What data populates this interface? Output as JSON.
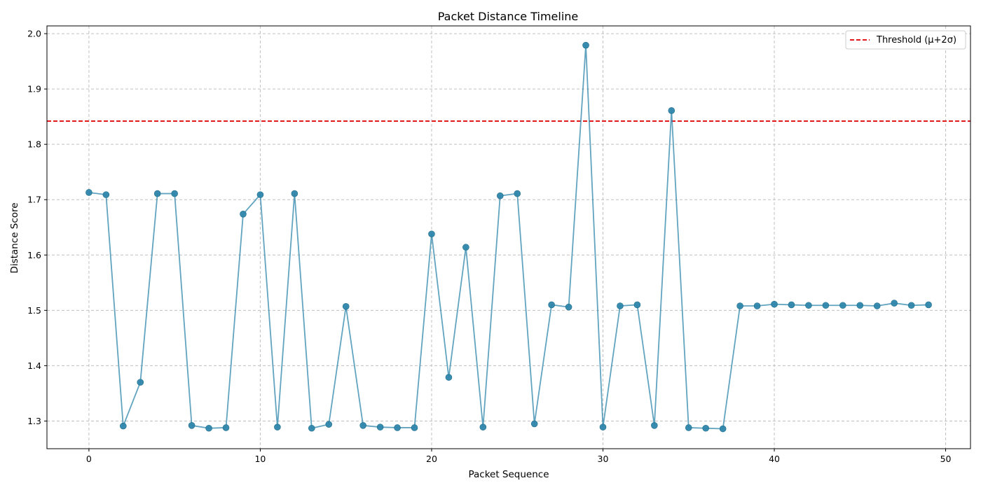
{
  "chart_data": {
    "type": "line",
    "title": "Packet Distance Timeline",
    "xlabel": "Packet Sequence",
    "ylabel": "Distance Score",
    "xlim": [
      -2.45,
      51.45
    ],
    "ylim": [
      1.25,
      2.014
    ],
    "x_ticks": [
      0,
      10,
      20,
      30,
      40,
      50
    ],
    "y_ticks": [
      1.3,
      1.4,
      1.5,
      1.6,
      1.7,
      1.8,
      1.9,
      2.0
    ],
    "grid": true,
    "legend_position": "top-right",
    "series": [
      {
        "name": "",
        "color": "#2e86ab",
        "x": [
          0,
          1,
          2,
          3,
          4,
          5,
          6,
          7,
          8,
          9,
          10,
          11,
          12,
          13,
          14,
          15,
          16,
          17,
          18,
          19,
          20,
          21,
          22,
          23,
          24,
          25,
          26,
          27,
          28,
          29,
          30,
          31,
          32,
          33,
          34,
          35,
          36,
          37,
          38,
          39,
          40,
          41,
          42,
          43,
          44,
          45,
          46,
          47,
          48,
          49
        ],
        "values": [
          1.713,
          1.709,
          1.291,
          1.37,
          1.711,
          1.711,
          1.292,
          1.287,
          1.288,
          1.674,
          1.709,
          1.289,
          1.711,
          1.287,
          1.294,
          1.507,
          1.292,
          1.289,
          1.288,
          1.288,
          1.638,
          1.379,
          1.614,
          1.289,
          1.707,
          1.711,
          1.295,
          1.51,
          1.506,
          1.979,
          1.289,
          1.508,
          1.51,
          1.292,
          1.861,
          1.288,
          1.287,
          1.286,
          1.508,
          1.508,
          1.511,
          1.51,
          1.509,
          1.509,
          1.509,
          1.509,
          1.508,
          1.513,
          1.509,
          1.51
        ]
      }
    ],
    "threshold": {
      "label": "Threshold (μ+2σ)",
      "value": 1.842,
      "color": "#e31a1c"
    }
  }
}
